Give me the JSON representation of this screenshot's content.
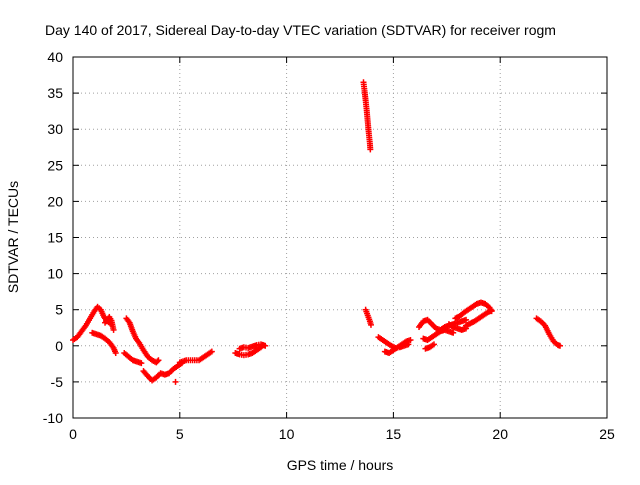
{
  "chart_data": {
    "type": "scatter",
    "title": "Day 140 of 2017, Sidereal Day-to-day VTEC variation (SDTVAR) for receiver rogm",
    "xlabel": "GPS time / hours",
    "ylabel": "SDTVAR / TECUs",
    "xlim": [
      0,
      25
    ],
    "ylim": [
      -10,
      40
    ],
    "xticks": [
      0,
      5,
      10,
      15,
      20,
      25
    ],
    "yticks": [
      -10,
      -5,
      0,
      5,
      10,
      15,
      20,
      25,
      30,
      35,
      40
    ],
    "grid": true,
    "marker": "plus",
    "marker_color": "#ff0000",
    "series": [
      {
        "segments": [
          [
            [
              0.0,
              0.8
            ],
            [
              0.2,
              1.2
            ],
            [
              0.4,
              2.0
            ],
            [
              0.6,
              2.8
            ],
            [
              0.8,
              3.8
            ],
            [
              1.0,
              4.8
            ],
            [
              1.15,
              5.4
            ],
            [
              1.3,
              5.0
            ],
            [
              1.45,
              4.0
            ],
            [
              1.6,
              3.4
            ],
            [
              1.8,
              3.0
            ]
          ],
          [
            [
              0.9,
              1.8
            ],
            [
              1.1,
              1.6
            ],
            [
              1.3,
              1.4
            ],
            [
              1.5,
              1.0
            ],
            [
              1.7,
              0.5
            ],
            [
              1.9,
              -0.3
            ],
            [
              2.0,
              -1.0
            ]
          ],
          [
            [
              1.5,
              3.2
            ],
            [
              1.7,
              4.0
            ],
            [
              1.8,
              3.5
            ],
            [
              1.9,
              2.2
            ]
          ],
          [
            [
              2.5,
              3.8
            ],
            [
              2.65,
              3.2
            ],
            [
              2.8,
              2.0
            ],
            [
              2.95,
              1.0
            ],
            [
              3.1,
              0.4
            ],
            [
              3.3,
              -0.6
            ],
            [
              3.5,
              -1.5
            ],
            [
              3.7,
              -2.0
            ],
            [
              3.9,
              -2.3
            ],
            [
              4.0,
              -2.0
            ]
          ],
          [
            [
              2.4,
              -1.0
            ],
            [
              2.6,
              -1.5
            ],
            [
              2.8,
              -2.0
            ],
            [
              3.0,
              -2.2
            ],
            [
              3.2,
              -2.4
            ]
          ],
          [
            [
              3.3,
              -3.5
            ],
            [
              3.5,
              -4.2
            ],
            [
              3.7,
              -4.8
            ],
            [
              3.9,
              -4.4
            ],
            [
              4.1,
              -3.8
            ],
            [
              4.3,
              -4.0
            ],
            [
              4.5,
              -3.8
            ],
            [
              4.7,
              -3.2
            ],
            [
              4.9,
              -2.8
            ],
            [
              5.1,
              -2.4
            ]
          ],
          [
            [
              4.8,
              -5.0
            ]
          ],
          [
            [
              5.0,
              -2.3
            ],
            [
              5.3,
              -2.0
            ],
            [
              5.6,
              -2.0
            ],
            [
              5.9,
              -2.0
            ],
            [
              6.1,
              -1.6
            ],
            [
              6.3,
              -1.2
            ],
            [
              6.5,
              -0.8
            ]
          ],
          [
            [
              7.6,
              -1.0
            ],
            [
              7.8,
              -1.2
            ],
            [
              8.0,
              -1.3
            ],
            [
              8.2,
              -1.2
            ],
            [
              8.4,
              -1.0
            ],
            [
              8.6,
              -0.6
            ],
            [
              8.8,
              -0.2
            ],
            [
              8.9,
              0.1
            ]
          ],
          [
            [
              7.8,
              -0.4
            ],
            [
              8.0,
              -0.2
            ],
            [
              8.2,
              -0.3
            ],
            [
              8.4,
              -0.1
            ],
            [
              8.6,
              0.1
            ],
            [
              8.8,
              0.2
            ],
            [
              9.0,
              0.0
            ]
          ],
          [
            [
              13.6,
              36.5
            ],
            [
              13.65,
              35.3
            ],
            [
              13.7,
              34.0
            ],
            [
              13.75,
              32.6
            ],
            [
              13.8,
              31.0
            ],
            [
              13.85,
              29.4
            ],
            [
              13.9,
              28.0
            ],
            [
              13.92,
              27.2
            ]
          ],
          [
            [
              13.7,
              5.0
            ],
            [
              13.8,
              4.2
            ],
            [
              13.9,
              3.4
            ],
            [
              13.95,
              2.9
            ]
          ],
          [
            [
              14.3,
              1.2
            ],
            [
              14.5,
              0.8
            ],
            [
              14.7,
              0.4
            ],
            [
              14.9,
              0.0
            ],
            [
              15.1,
              -0.3
            ],
            [
              15.3,
              -0.2
            ],
            [
              15.5,
              0.0
            ],
            [
              15.7,
              0.2
            ]
          ],
          [
            [
              14.6,
              -0.8
            ],
            [
              14.8,
              -1.0
            ],
            [
              15.0,
              -0.6
            ],
            [
              15.2,
              -0.2
            ],
            [
              15.4,
              0.2
            ],
            [
              15.6,
              0.6
            ],
            [
              15.8,
              0.8
            ]
          ],
          [
            [
              16.2,
              2.6
            ],
            [
              16.4,
              3.4
            ],
            [
              16.6,
              3.6
            ],
            [
              16.8,
              3.0
            ],
            [
              17.0,
              2.4
            ],
            [
              17.2,
              2.2
            ],
            [
              17.4,
              2.6
            ],
            [
              17.6,
              2.8
            ],
            [
              17.8,
              3.0
            ],
            [
              18.0,
              3.2
            ],
            [
              18.2,
              3.4
            ],
            [
              18.4,
              3.6
            ]
          ],
          [
            [
              16.4,
              1.0
            ],
            [
              16.6,
              0.8
            ],
            [
              16.8,
              1.2
            ],
            [
              17.0,
              1.6
            ],
            [
              17.2,
              2.0
            ],
            [
              17.4,
              2.2
            ],
            [
              17.6,
              2.0
            ],
            [
              17.8,
              1.8
            ]
          ],
          [
            [
              16.5,
              -0.4
            ],
            [
              16.7,
              -0.2
            ],
            [
              16.9,
              0.2
            ]
          ],
          [
            [
              17.6,
              3.0
            ],
            [
              17.8,
              2.6
            ],
            [
              18.0,
              2.4
            ],
            [
              18.2,
              2.2
            ],
            [
              18.4,
              2.4
            ]
          ],
          [
            [
              17.9,
              3.8
            ],
            [
              18.1,
              4.1
            ],
            [
              18.3,
              4.6
            ],
            [
              18.5,
              5.0
            ],
            [
              18.7,
              5.4
            ],
            [
              18.9,
              5.8
            ],
            [
              19.1,
              6.0
            ],
            [
              19.3,
              5.8
            ],
            [
              19.5,
              5.3
            ],
            [
              19.6,
              4.8
            ]
          ],
          [
            [
              18.4,
              2.8
            ],
            [
              18.6,
              3.1
            ],
            [
              18.8,
              3.4
            ],
            [
              19.0,
              3.8
            ],
            [
              19.2,
              4.2
            ],
            [
              19.4,
              4.6
            ],
            [
              19.6,
              4.9
            ]
          ],
          [
            [
              21.7,
              3.8
            ],
            [
              21.9,
              3.4
            ],
            [
              22.1,
              2.8
            ],
            [
              22.3,
              1.6
            ],
            [
              22.5,
              0.6
            ],
            [
              22.7,
              0.1
            ],
            [
              22.8,
              0.0
            ]
          ]
        ]
      }
    ]
  }
}
